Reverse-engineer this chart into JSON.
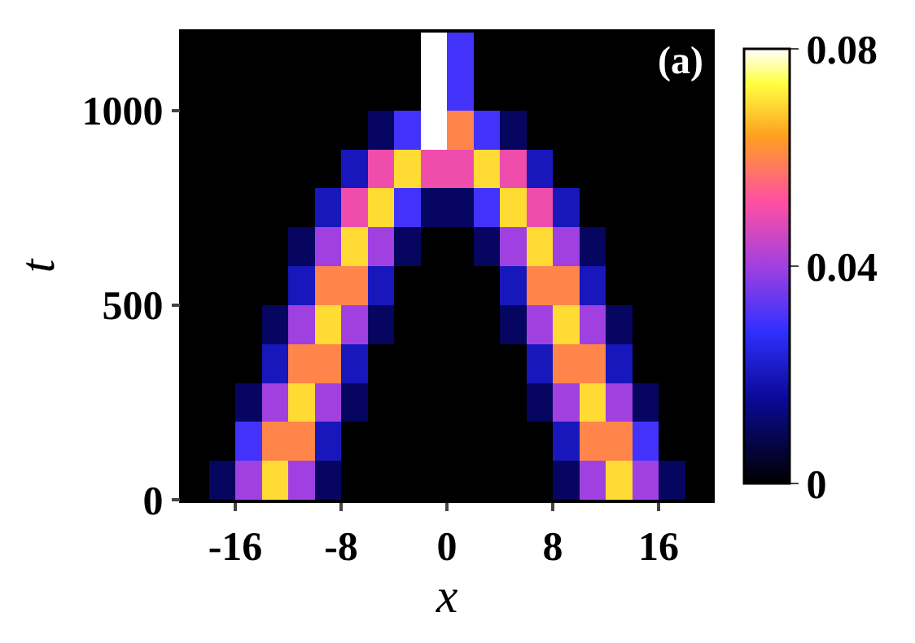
{
  "chart_data": {
    "type": "heatmap",
    "xlabel": "x",
    "ylabel": "t",
    "annotations": [
      "(a)"
    ],
    "x": [
      -19,
      -17,
      -15,
      -13,
      -11,
      -9,
      -7,
      -5,
      -3,
      -1,
      1,
      3,
      5,
      7,
      9,
      11,
      13,
      15,
      17,
      19
    ],
    "y": [
      1150,
      1050,
      950,
      850,
      750,
      650,
      550,
      450,
      350,
      250,
      150,
      50
    ],
    "cells": [
      [
        0,
        0,
        0,
        0,
        0,
        0,
        0,
        0,
        0,
        0.08,
        0.03,
        0,
        0,
        0,
        0,
        0,
        0,
        0,
        0,
        0
      ],
      [
        0,
        0,
        0,
        0,
        0,
        0,
        0,
        0,
        0,
        0.08,
        0.03,
        0,
        0,
        0,
        0,
        0,
        0,
        0,
        0,
        0
      ],
      [
        0,
        0,
        0,
        0,
        0,
        0,
        0,
        0.01,
        0.03,
        0.08,
        0.06,
        0.03,
        0.01,
        0,
        0,
        0,
        0,
        0,
        0,
        0
      ],
      [
        0,
        0,
        0,
        0,
        0,
        0,
        0.02,
        0.05,
        0.07,
        0.05,
        0.05,
        0.07,
        0.05,
        0.02,
        0,
        0,
        0,
        0,
        0,
        0
      ],
      [
        0,
        0,
        0,
        0,
        0,
        0.02,
        0.05,
        0.07,
        0.03,
        0.01,
        0.01,
        0.03,
        0.07,
        0.05,
        0.02,
        0,
        0,
        0,
        0,
        0
      ],
      [
        0,
        0,
        0,
        0,
        0.01,
        0.04,
        0.07,
        0.04,
        0.01,
        0,
        0,
        0.01,
        0.04,
        0.07,
        0.04,
        0.01,
        0,
        0,
        0,
        0
      ],
      [
        0,
        0,
        0,
        0,
        0.02,
        0.06,
        0.06,
        0.02,
        0,
        0,
        0,
        0,
        0.02,
        0.06,
        0.06,
        0.02,
        0,
        0,
        0,
        0
      ],
      [
        0,
        0,
        0,
        0.01,
        0.04,
        0.07,
        0.04,
        0.01,
        0,
        0,
        0,
        0,
        0.01,
        0.04,
        0.07,
        0.04,
        0.01,
        0,
        0,
        0
      ],
      [
        0,
        0,
        0,
        0.02,
        0.06,
        0.06,
        0.02,
        0,
        0,
        0,
        0,
        0,
        0,
        0.02,
        0.06,
        0.06,
        0.02,
        0,
        0,
        0
      ],
      [
        0,
        0,
        0.01,
        0.04,
        0.07,
        0.04,
        0.01,
        0,
        0,
        0,
        0,
        0,
        0,
        0.01,
        0.04,
        0.07,
        0.04,
        0.01,
        0,
        0
      ],
      [
        0,
        0,
        0.03,
        0.06,
        0.06,
        0.02,
        0,
        0,
        0,
        0,
        0,
        0,
        0,
        0,
        0.02,
        0.06,
        0.06,
        0.03,
        0,
        0
      ],
      [
        0,
        0.01,
        0.04,
        0.07,
        0.04,
        0.01,
        0,
        0,
        0,
        0,
        0,
        0,
        0,
        0,
        0.01,
        0.04,
        0.07,
        0.04,
        0.01,
        0
      ]
    ],
    "xlim": [
      -20,
      20
    ],
    "xticks": [
      -16,
      -8,
      0,
      8,
      16
    ],
    "ylim": [
      0,
      1200
    ],
    "yticks": [
      0,
      500,
      1000
    ],
    "clim": [
      0,
      0.08
    ],
    "cticks": [
      0,
      0.04,
      0.08
    ]
  }
}
